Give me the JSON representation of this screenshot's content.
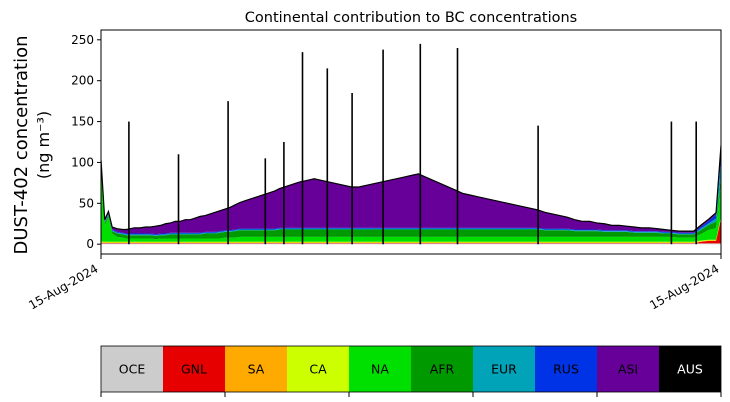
{
  "chart_data": {
    "type": "area",
    "title": "Continental contribution to BC concentrations",
    "ylabel_line1": "DUST-402 concentration",
    "ylabel_line2": "(ng m⁻³)",
    "xlabel": "",
    "ylim": [
      -12,
      262
    ],
    "yticks": [
      0,
      50,
      100,
      150,
      200,
      250
    ],
    "x_tick_labels": [
      "15-Aug-2024",
      "15-Aug-2024"
    ],
    "stacked": true,
    "note_values": "values are ng m-3 per continent, stacked in legend order (OCE at bottom)",
    "categories": [
      "OCE",
      "GNL",
      "SA",
      "CA",
      "NA",
      "AFR",
      "EUR",
      "RUS",
      "ASI",
      "AUS"
    ],
    "colors": {
      "OCE": "#cccccc",
      "GNL": "#e60000",
      "SA": "#ffaa00",
      "CA": "#ccff00",
      "NA": "#00e000",
      "AFR": "#009900",
      "EUR": "#00a3b8",
      "RUS": "#0033e6",
      "ASI": "#660099",
      "AUS": "#000000"
    },
    "legend": [
      {
        "name": "OCE",
        "color": "#cccccc",
        "text_color": "#000000"
      },
      {
        "name": "GNL",
        "color": "#e60000",
        "text_color": "#000000"
      },
      {
        "name": "SA",
        "color": "#ffaa00",
        "text_color": "#000000"
      },
      {
        "name": "CA",
        "color": "#ccff00",
        "text_color": "#000000"
      },
      {
        "name": "NA",
        "color": "#00e000",
        "text_color": "#000000"
      },
      {
        "name": "AFR",
        "color": "#009900",
        "text_color": "#000000"
      },
      {
        "name": "EUR",
        "color": "#00a3b8",
        "text_color": "#000000"
      },
      {
        "name": "RUS",
        "color": "#0033e6",
        "text_color": "#000000"
      },
      {
        "name": "ASI",
        "color": "#660099",
        "text_color": "#000000"
      },
      {
        "name": "AUS",
        "color": "#000000",
        "text_color": "#ffffff"
      }
    ],
    "x": [
      0,
      0.6,
      1.2,
      1.8,
      2.6,
      3.5,
      4.1,
      4.7,
      5.4,
      6.3,
      7.2,
      8,
      8.8,
      9.6,
      10.4,
      11.2,
      12,
      12.8,
      13.6,
      14.4,
      15.2,
      16,
      16.8,
      17.6,
      18.4,
      19.2,
      20,
      20.8,
      21.6,
      22.4,
      23.2,
      24,
      24.8,
      25.6,
      26.4,
      27.2,
      28,
      28.8,
      29.6,
      30.4,
      31.2,
      32,
      33.2,
      34.4,
      35.6,
      36.8,
      38,
      39.2,
      40.4,
      41.6,
      42.8,
      44,
      45.2,
      46.4,
      47.6,
      48.8,
      50,
      51.2,
      52.4,
      53.6,
      54.8,
      56,
      57.2,
      58.4,
      59.6,
      60.8,
      62,
      63.2,
      64.4,
      65.6,
      66.8,
      68,
      69.2,
      70.4,
      71.6,
      72.8,
      74,
      75.2,
      76.4,
      77.6,
      78.8,
      80,
      81.2,
      82.4,
      83.6,
      84.8,
      86,
      87.2,
      88.4,
      89.6,
      90.8,
      92,
      93.2,
      94.4,
      95.6,
      96.8,
      98,
      99.2,
      100
    ],
    "series": [
      {
        "name": "OCE",
        "values": [
          1,
          1,
          1,
          1,
          1,
          1,
          1,
          1,
          1,
          1,
          1,
          1,
          1,
          1,
          1,
          1,
          1,
          1,
          1,
          1,
          1,
          1,
          1,
          1,
          1,
          1,
          1,
          1,
          1,
          1,
          1,
          1,
          1,
          1,
          1,
          1,
          1,
          1,
          1,
          1,
          1,
          1,
          1,
          1,
          1,
          1,
          1,
          1,
          1,
          1,
          1,
          1,
          1,
          1,
          1,
          1,
          1,
          1,
          1,
          1,
          1,
          1,
          1,
          1,
          1,
          1,
          1,
          1,
          1,
          1,
          1,
          1,
          1,
          1,
          1,
          1,
          1,
          1,
          1,
          1,
          1,
          1,
          1,
          1,
          1,
          1,
          1,
          1,
          1,
          1,
          1,
          1,
          1,
          1,
          1,
          1,
          1,
          1,
          1
        ]
      },
      {
        "name": "GNL",
        "values": [
          1,
          0.5,
          0.5,
          0.5,
          0.5,
          0.5,
          0.5,
          0.5,
          0.5,
          0.5,
          0.5,
          0.5,
          0.5,
          0.5,
          0.5,
          0.5,
          0.5,
          0.5,
          0.5,
          0.5,
          0.5,
          0.5,
          0.5,
          0.5,
          0.5,
          0.5,
          0.5,
          0.5,
          0.5,
          0.5,
          0.5,
          0.5,
          0.5,
          0.5,
          0.5,
          0.5,
          0.5,
          0.5,
          0.5,
          0.5,
          0.5,
          0.5,
          0.5,
          0.5,
          0.5,
          0.5,
          0.5,
          0.5,
          0.5,
          0.5,
          0.5,
          0.5,
          0.5,
          0.5,
          0.5,
          0.5,
          0.5,
          0.5,
          0.5,
          0.5,
          0.5,
          0.5,
          0.5,
          0.5,
          0.5,
          0.5,
          0.5,
          0.5,
          0.5,
          0.5,
          0.5,
          0.5,
          0.5,
          0.5,
          0.5,
          0.5,
          0.5,
          0.5,
          0.5,
          0.5,
          0.5,
          0.5,
          0.5,
          0.5,
          0.5,
          0.5,
          0.5,
          0.5,
          0.5,
          0.5,
          0.5,
          0.5,
          0.5,
          0.5,
          0.5,
          2,
          3,
          3,
          30
        ]
      },
      {
        "name": "SA",
        "values": [
          0.5,
          0.5,
          0.5,
          0.5,
          0.5,
          0.5,
          0.5,
          0.5,
          0.5,
          0.5,
          0.5,
          0.5,
          0.5,
          0.5,
          0.5,
          0.5,
          0.5,
          0.5,
          0.5,
          0.5,
          0.5,
          0.5,
          0.5,
          0.5,
          0.5,
          0.5,
          0.5,
          0.5,
          0.5,
          0.5,
          0.5,
          0.5,
          0.5,
          0.5,
          0.5,
          0.5,
          0.5,
          0.5,
          0.5,
          0.5,
          0.5,
          0.5,
          0.5,
          0.5,
          0.5,
          0.5,
          0.5,
          0.5,
          0.5,
          0.5,
          0.5,
          0.5,
          0.5,
          0.5,
          0.5,
          0.5,
          0.5,
          0.5,
          0.5,
          0.5,
          0.5,
          0.5,
          0.5,
          0.5,
          0.5,
          0.5,
          0.5,
          0.5,
          0.5,
          0.5,
          0.5,
          0.5,
          0.5,
          0.5,
          0.5,
          0.5,
          0.5,
          0.5,
          0.5,
          0.5,
          0.5,
          0.5,
          0.5,
          0.5,
          0.5,
          0.5,
          0.5,
          0.5,
          0.5,
          0.5,
          0.5,
          0.5,
          0.5,
          0.5,
          0.5,
          0.5,
          0.5,
          0.5,
          1
        ]
      },
      {
        "name": "CA",
        "values": [
          1,
          1,
          1,
          1,
          1,
          1,
          1,
          1,
          1,
          1,
          1,
          1,
          1,
          1,
          1,
          1,
          1,
          1,
          1,
          1,
          1,
          1,
          1,
          1,
          1,
          1,
          1,
          1,
          1,
          1,
          1,
          1,
          1,
          1,
          1,
          1,
          1,
          1,
          1,
          1,
          1,
          1,
          1,
          1,
          1,
          1,
          1,
          1,
          1,
          1,
          1,
          1,
          1,
          1,
          1,
          1,
          1,
          1,
          1,
          1,
          1,
          1,
          1,
          1,
          1,
          1,
          1,
          1,
          1,
          1,
          1,
          1,
          1,
          1,
          1,
          1,
          1,
          1,
          1,
          1,
          1,
          1,
          1,
          1,
          1,
          1,
          1,
          1,
          1,
          1,
          1,
          1,
          1,
          1,
          1,
          1,
          1,
          1,
          2
        ]
      },
      {
        "name": "NA",
        "values": [
          95,
          20,
          30,
          10,
          6,
          5,
          4,
          4,
          4,
          4,
          4,
          4,
          3,
          4,
          4,
          4,
          4,
          4,
          4,
          4,
          4,
          4,
          4,
          4,
          4,
          4,
          5,
          5,
          5,
          6,
          6,
          6,
          6,
          6,
          6,
          6,
          6,
          6,
          6,
          6,
          6,
          6,
          6,
          6,
          6,
          6,
          6,
          6,
          6,
          6,
          6,
          6,
          6,
          6,
          6,
          6,
          6,
          6,
          6,
          6,
          6,
          6,
          6,
          6,
          6,
          6,
          6,
          6,
          6,
          6,
          6,
          6,
          6,
          6,
          6,
          6,
          6,
          6,
          6,
          6,
          6,
          6,
          6,
          6,
          6,
          6,
          6,
          6,
          6,
          6,
          6,
          6,
          5,
          5,
          5,
          8,
          12,
          14,
          40
        ]
      },
      {
        "name": "AFR",
        "values": [
          2,
          3,
          3,
          3,
          4,
          4,
          4,
          4,
          4,
          4,
          4,
          4,
          4,
          4,
          4,
          5,
          5,
          5,
          5,
          5,
          5,
          5,
          6,
          6,
          6,
          7,
          7,
          7,
          8,
          8,
          8,
          8,
          8,
          8,
          8,
          8,
          8,
          9,
          9,
          9,
          9,
          9,
          9,
          9,
          9,
          9,
          9,
          9,
          9,
          9,
          9,
          9,
          9,
          9,
          9,
          9,
          9,
          9,
          9,
          9,
          9,
          9,
          9,
          9,
          9,
          9,
          9,
          9,
          9,
          9,
          9,
          9,
          9,
          9,
          8,
          8,
          8,
          8,
          7,
          7,
          7,
          7,
          6,
          6,
          6,
          6,
          5,
          5,
          5,
          5,
          4,
          4,
          4,
          4,
          4,
          5,
          6,
          8,
          10
        ]
      },
      {
        "name": "EUR",
        "values": [
          1,
          1,
          1,
          1,
          1,
          1,
          1,
          1,
          1,
          1,
          1,
          1,
          1,
          1,
          1,
          1,
          1,
          1,
          1,
          1,
          1,
          1,
          1,
          1,
          1,
          1,
          1,
          1,
          1,
          1,
          1,
          1,
          1,
          1,
          1,
          1,
          1,
          1,
          1,
          1,
          1,
          1,
          1,
          1,
          1,
          1,
          1,
          1,
          1,
          1,
          1,
          1,
          1,
          1,
          1,
          1,
          1,
          1,
          1,
          1,
          1,
          1,
          1,
          1,
          1,
          1,
          1,
          1,
          1,
          1,
          1,
          1,
          1,
          1,
          1,
          1,
          1,
          1,
          1,
          1,
          1,
          1,
          1,
          1,
          1,
          1,
          1,
          1,
          1,
          1,
          1,
          1,
          1,
          1,
          1,
          2,
          2,
          4,
          20
        ]
      },
      {
        "name": "RUS",
        "values": [
          1,
          1,
          1,
          1,
          1,
          1,
          1,
          1,
          1,
          1,
          1,
          1,
          1,
          1,
          1,
          1,
          1,
          1,
          1,
          1,
          1,
          1,
          1,
          1,
          1,
          1,
          1,
          1,
          1,
          1,
          1,
          1,
          1,
          1,
          1,
          1,
          1,
          1,
          1,
          1,
          1,
          1,
          1,
          1,
          1,
          1,
          1,
          1,
          1,
          1,
          1,
          1,
          1,
          1,
          1,
          1,
          1,
          1,
          1,
          1,
          1,
          1,
          1,
          1,
          1,
          1,
          1,
          1,
          1,
          1,
          1,
          1,
          1,
          1,
          1,
          1,
          1,
          1,
          1,
          1,
          1,
          1,
          1,
          1,
          1,
          1,
          1,
          1,
          1,
          1,
          1,
          1,
          1,
          1,
          1,
          2,
          3,
          5,
          15
        ]
      },
      {
        "name": "ASI",
        "values": [
          0.5,
          2,
          2,
          3,
          4,
          4,
          5,
          6,
          7,
          7,
          8,
          8,
          10,
          10,
          12,
          12,
          14,
          14,
          16,
          16,
          18,
          20,
          20,
          22,
          24,
          25,
          26,
          28,
          30,
          32,
          34,
          36,
          38,
          40,
          42,
          44,
          46,
          48,
          50,
          52,
          54,
          56,
          58,
          60,
          58,
          56,
          54,
          52,
          50,
          50,
          52,
          54,
          56,
          58,
          60,
          62,
          64,
          66,
          62,
          58,
          54,
          50,
          46,
          42,
          40,
          38,
          36,
          34,
          32,
          30,
          28,
          26,
          24,
          22,
          20,
          18,
          16,
          14,
          12,
          10,
          10,
          8,
          8,
          6,
          6,
          5,
          5,
          4,
          4,
          3,
          3,
          2,
          2,
          2,
          2,
          2,
          2,
          2,
          2
        ]
      },
      {
        "name": "AUS",
        "values": [
          0.5,
          0,
          0,
          0,
          0,
          0,
          0,
          0,
          0,
          0,
          0,
          0,
          0,
          0,
          0,
          0,
          0,
          0,
          0,
          0,
          0,
          0,
          0,
          0,
          0,
          0,
          0,
          0,
          0,
          0,
          0,
          0,
          0,
          0,
          0,
          0,
          0,
          0,
          0,
          0,
          0,
          0,
          0,
          0,
          0,
          0,
          0,
          0,
          0,
          0,
          0,
          0,
          0,
          0,
          0,
          0,
          0,
          0,
          0,
          0,
          0,
          0,
          0,
          0,
          0,
          0,
          0,
          0,
          0,
          0,
          0,
          0,
          0,
          0,
          0,
          0,
          0,
          0,
          0,
          0,
          0,
          0,
          0,
          0,
          0,
          0,
          0,
          0,
          0,
          0,
          0,
          0,
          0,
          0,
          0,
          0,
          0,
          0,
          0
        ]
      }
    ],
    "spikes": [
      {
        "x": 4.5,
        "y": 150
      },
      {
        "x": 12.5,
        "y": 110
      },
      {
        "x": 20.5,
        "y": 175
      },
      {
        "x": 26.5,
        "y": 105
      },
      {
        "x": 29.5,
        "y": 125
      },
      {
        "x": 32.5,
        "y": 235
      },
      {
        "x": 36.5,
        "y": 215
      },
      {
        "x": 40.5,
        "y": 185
      },
      {
        "x": 45.5,
        "y": 238
      },
      {
        "x": 51.5,
        "y": 245
      },
      {
        "x": 57.5,
        "y": 240
      },
      {
        "x": 70.5,
        "y": 145
      },
      {
        "x": 92,
        "y": 150
      },
      {
        "x": 96,
        "y": 150
      }
    ]
  }
}
